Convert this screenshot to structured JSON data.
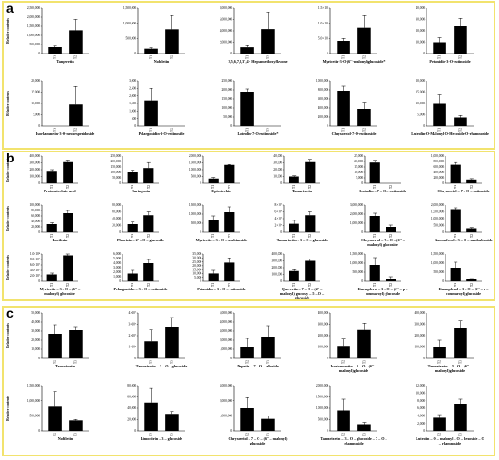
{
  "figure": {
    "panels": [
      {
        "id": "a",
        "letter": "a",
        "ylabel": "Relative contents"
      },
      {
        "id": "b",
        "letter": "b",
        "ylabel": "Relative contents"
      },
      {
        "id": "c",
        "letter": "c",
        "ylabel": "Relative contents"
      }
    ]
  },
  "chart_data": [
    {
      "type": "bar",
      "panel": "a",
      "title": "Tangeretin",
      "categories": [
        "T1",
        "T2"
      ],
      "values": [
        350000,
        1280000
      ],
      "errors": [
        60000,
        600000
      ],
      "yticks": [
        "0",
        "500,000",
        "1,000,000",
        "1,500,000",
        "2,000,000",
        "2,500,000"
      ],
      "ylim": [
        0,
        2500000
      ]
    },
    {
      "type": "bar",
      "panel": "a",
      "title": "Nobiletin",
      "categories": [
        "T1",
        "T2"
      ],
      "values": [
        160000,
        800000
      ],
      "errors": [
        30000,
        450000
      ],
      "yticks": [
        "0",
        "500,000",
        "1,000,000",
        "1,500,000"
      ],
      "ylim": [
        0,
        1500000
      ]
    },
    {
      "type": "bar",
      "panel": "a",
      "title": "3,5,6,7,8,3′,4′- Heptamethoxyflavone",
      "categories": [
        "T1",
        "T2"
      ],
      "values": [
        1100000,
        4300000
      ],
      "errors": [
        300000,
        3000000
      ],
      "yticks": [
        "0",
        "2,000,000",
        "4,000,000",
        "6,000,000",
        "8,000,000"
      ],
      "ylim": [
        0,
        8000000
      ]
    },
    {
      "type": "bar",
      "panel": "a",
      "title": "Myricetin-3-O-(6''-malonyl)glucoside*",
      "categories": [
        "T1",
        "T2"
      ],
      "values": [
        42000000,
        85000000
      ],
      "errors": [
        8000000,
        40000000
      ],
      "yticks": [
        "0",
        "5.0×10⁷",
        "1.0×10⁸",
        "1.5×10⁸"
      ],
      "ylim": [
        0,
        150000000
      ]
    },
    {
      "type": "bar",
      "panel": "a",
      "title": "Petunidin-3-O-rutinoside",
      "categories": [
        "T1",
        "T2"
      ],
      "values": [
        10000,
        24000
      ],
      "errors": [
        4000,
        7000
      ],
      "yticks": [
        "0",
        "10,000",
        "20,000",
        "30,000",
        "40,000"
      ],
      "ylim": [
        0,
        40000
      ]
    },
    {
      "type": "bar",
      "panel": "a",
      "title": "Isorhamnetin-3-O-neohesperidoside",
      "categories": [
        "T1",
        "T2"
      ],
      "values": [
        0,
        9500
      ],
      "errors": [
        0,
        8000
      ],
      "yticks": [
        "0",
        "5,000",
        "10,000",
        "15,000",
        "20,000"
      ],
      "ylim": [
        0,
        20000
      ]
    },
    {
      "type": "bar",
      "panel": "a",
      "title": "Pelargonidin-3-O-rutinoside",
      "categories": [
        "T1",
        "T2"
      ],
      "values": [
        1700,
        0
      ],
      "errors": [
        800,
        0
      ],
      "yticks": [
        "0",
        "500",
        "1,000",
        "1,500",
        "2,000",
        "2,500",
        "3,000"
      ],
      "ylim": [
        0,
        3000
      ]
    },
    {
      "type": "bar",
      "panel": "a",
      "title": "Luteolin-7-O-rutinoside*",
      "categories": [
        "T1",
        "T2"
      ],
      "values": [
        190000,
        0
      ],
      "errors": [
        15000,
        0
      ],
      "yticks": [
        "0",
        "50,000",
        "100,000",
        "150,000",
        "200,000",
        "250,000"
      ],
      "ylim": [
        0,
        250000
      ]
    },
    {
      "type": "bar",
      "panel": "a",
      "title": "Chrysoeriol-7-O-rutinoside",
      "categories": [
        "T1",
        "T2"
      ],
      "values": [
        780000,
        380000
      ],
      "errors": [
        100000,
        150000
      ],
      "yticks": [
        "0",
        "200,000",
        "400,000",
        "600,000",
        "800,000",
        "1,000,000"
      ],
      "ylim": [
        0,
        1000000
      ]
    },
    {
      "type": "bar",
      "panel": "a",
      "title": "Luteolin-O-Malonyl-O-Hexoside-O-rhamnoside",
      "categories": [
        "T1",
        "T2"
      ],
      "values": [
        9800,
        3800
      ],
      "errors": [
        4000,
        900
      ],
      "yticks": [
        "0",
        "5,000",
        "10,000",
        "15,000",
        "20,000"
      ],
      "ylim": [
        0,
        20000
      ]
    },
    {
      "type": "bar",
      "panel": "b",
      "title": "Protocatechuic acid",
      "categories": [
        "T1",
        "T2"
      ],
      "values": [
        170000,
        310000
      ],
      "errors": [
        30000,
        30000
      ],
      "yticks": [
        "0",
        "100,000",
        "200,000",
        "300,000",
        "400,000"
      ],
      "ylim": [
        0,
        400000
      ]
    },
    {
      "type": "bar",
      "panel": "b",
      "title": "Naringenin",
      "categories": [
        "T1",
        "T2"
      ],
      "values": [
        100000,
        140000
      ],
      "errors": [
        20000,
        50000
      ],
      "yticks": [
        "0",
        "50,000",
        "100,000",
        "150,000",
        "200,000",
        "250,000"
      ],
      "ylim": [
        0,
        250000
      ]
    },
    {
      "type": "bar",
      "panel": "b",
      "title": "Epicatechin",
      "categories": [
        "T1",
        "T2"
      ],
      "values": [
        350000,
        1350000
      ],
      "errors": [
        80000,
        30000
      ],
      "yticks": [
        "0",
        "500,000",
        "1,000,000",
        "1,500,000",
        "2,000,000"
      ],
      "ylim": [
        0,
        2000000
      ]
    },
    {
      "type": "bar",
      "panel": "b",
      "title": "Tamarixetin",
      "categories": [
        "T1",
        "T2"
      ],
      "values": [
        10000,
        31000
      ],
      "errors": [
        1000,
        4000
      ],
      "yticks": [
        "0",
        "10,000",
        "20,000",
        "30,000",
        "40,000"
      ],
      "ylim": [
        0,
        40000
      ]
    },
    {
      "type": "bar",
      "panel": "b",
      "title": "Luteolin – 7 – O – rutinoside",
      "categories": [
        "T1",
        "T2"
      ],
      "values": [
        19000,
        0
      ],
      "errors": [
        2000,
        0
      ],
      "yticks": [
        "0",
        "5,000",
        "10,000",
        "15,000",
        "20,000",
        "25,000"
      ],
      "ylim": [
        0,
        25000
      ]
    },
    {
      "type": "bar",
      "panel": "b",
      "title": "Chrysoeriol – 7 – O – rutinoside",
      "categories": [
        "T1",
        "T2"
      ],
      "values": [
        680000,
        140000
      ],
      "errors": [
        80000,
        30000
      ],
      "yticks": [
        "0",
        "200,000",
        "400,000",
        "600,000",
        "800,000",
        "1,000,000"
      ],
      "ylim": [
        0,
        1000000
      ]
    },
    {
      "type": "bar",
      "panel": "b",
      "title": "Luciferin",
      "categories": [
        "T1",
        "T2"
      ],
      "values": [
        30000,
        70000
      ],
      "errors": [
        5000,
        10000
      ],
      "yticks": [
        "0",
        "20,000",
        "40,000",
        "60,000",
        "80,000",
        "100,000"
      ],
      "ylim": [
        0,
        100000
      ]
    },
    {
      "type": "bar",
      "panel": "b",
      "title": "Phlorizin – 2' – O – glucoside",
      "categories": [
        "T1",
        "T2"
      ],
      "values": [
        24000,
        50000
      ],
      "errors": [
        6000,
        10000
      ],
      "yticks": [
        "0",
        "20,000",
        "40,000",
        "60,000",
        "80,000"
      ],
      "ylim": [
        0,
        80000
      ]
    },
    {
      "type": "bar",
      "panel": "b",
      "title": "Myricetin – 3 – O – arabinoside",
      "categories": [
        "T1",
        "T2"
      ],
      "values": [
        700000,
        1100000
      ],
      "errors": [
        200000,
        300000
      ],
      "yticks": [
        "0",
        "500,000",
        "1,000,000",
        "1,500,000"
      ],
      "ylim": [
        0,
        1500000
      ]
    },
    {
      "type": "bar",
      "panel": "b",
      "title": "Tamarixetin – 3 – O – glucoside",
      "categories": [
        "T1",
        "T2"
      ],
      "values": [
        25000000,
        50000000
      ],
      "errors": [
        10000000,
        10000000
      ],
      "yticks": [
        "0",
        "2×10⁷",
        "4×10⁷",
        "6×10⁷",
        "8×10⁷"
      ],
      "ylim": [
        0,
        80000000
      ]
    },
    {
      "type": "bar",
      "panel": "b",
      "title": "Chrysoeriol – 7 – O – (6'' – malonyl) glucoside",
      "categories": [
        "T1",
        "T2"
      ],
      "values": [
        1800000,
        600000
      ],
      "errors": [
        300000,
        200000
      ],
      "yticks": [
        "0",
        "1,000,000",
        "2,000,000",
        "3,000,000"
      ],
      "ylim": [
        0,
        3000000
      ]
    },
    {
      "type": "bar",
      "panel": "b",
      "title": "Kaempferol – 3 – O – sambubioside",
      "categories": [
        "T1",
        "T2"
      ],
      "values": [
        1700000,
        300000
      ],
      "errors": [
        100000,
        50000
      ],
      "yticks": [
        "0",
        "500,000",
        "1,000,000",
        "1,500,000",
        "2,000,000"
      ],
      "ylim": [
        0,
        2000000
      ]
    },
    {
      "type": "bar",
      "panel": "b",
      "title": "Myricetin – 3 – O – (6'' – malonyl) glucoside",
      "categories": [
        "T1",
        "T2"
      ],
      "values": [
        25000000,
        95000000
      ],
      "errors": [
        5000000,
        15000000
      ],
      "yticks": [
        "0",
        "2.0×10⁷",
        "4.0×10⁷",
        "6.0×10⁷",
        "8.0×10⁷",
        "1.0×10⁸"
      ],
      "ylim": [
        0,
        100000000
      ]
    },
    {
      "type": "bar",
      "panel": "b",
      "title": "Pelargonidin – 3 – O – rutinoside",
      "categories": [
        "T1",
        "T2"
      ],
      "values": [
        1700,
        4000
      ],
      "errors": [
        700,
        800
      ],
      "yticks": [
        "0",
        "1,000",
        "2,000",
        "3,000",
        "4,000",
        "5,000",
        "6,000"
      ],
      "ylim": [
        0,
        6000
      ]
    },
    {
      "type": "bar",
      "panel": "b",
      "title": "Petunidin – 3 – O – rutinoside",
      "categories": [
        "T1",
        "T2"
      ],
      "values": [
        10000,
        24000
      ],
      "errors": [
        4000,
        6000
      ],
      "yticks": [
        "0",
        "5,000",
        "10,000",
        "15,000",
        "20,000",
        "25,000",
        "30,000",
        "35,000"
      ],
      "ylim": [
        0,
        35000
      ]
    },
    {
      "type": "bar",
      "panel": "b",
      "title": "Quercetin – 7 – O – (2'' – malonyl) glucosyl – 5 – O – glucoside",
      "categories": [
        "T1",
        "T2"
      ],
      "values": [
        150000,
        300000
      ],
      "errors": [
        20000,
        30000
      ],
      "yticks": [
        "0",
        "100,000",
        "200,000",
        "300,000",
        "400,000"
      ],
      "ylim": [
        0,
        400000
      ]
    },
    {
      "type": "bar",
      "panel": "b",
      "title": "Kaempferol – 3 – O – (2'' – p – coumaroyl) glucoside",
      "categories": [
        "T1",
        "T2"
      ],
      "values": [
        900000,
        150000
      ],
      "errors": [
        400000,
        100000
      ],
      "yticks": [
        "0",
        "500,000",
        "1,000,000",
        "1,500,000"
      ],
      "ylim": [
        0,
        1500000
      ]
    },
    {
      "type": "bar",
      "panel": "b",
      "title": "Kaempferol – 3 – O – (6'' – p – coumaroyl) glucoside",
      "categories": [
        "T1",
        "T2"
      ],
      "values": [
        750000,
        100000
      ],
      "errors": [
        300000,
        50000
      ],
      "yticks": [
        "0",
        "500,000",
        "1,000,000",
        "1,500,000"
      ],
      "ylim": [
        0,
        1500000
      ]
    },
    {
      "type": "bar",
      "panel": "c",
      "title": "Tamarixetin",
      "categories": [
        "T2",
        "T3"
      ],
      "values": [
        27000,
        31000
      ],
      "errors": [
        10000,
        4000
      ],
      "yticks": [
        "0",
        "10,000",
        "20,000",
        "30,000",
        "40,000",
        "50,000"
      ],
      "ylim": [
        0,
        50000
      ]
    },
    {
      "type": "bar",
      "panel": "c",
      "title": "Tamarixetin – 3 – O – glucoside",
      "categories": [
        "T2",
        "T3"
      ],
      "values": [
        15000000,
        28000000
      ],
      "errors": [
        10000000,
        8000000
      ],
      "yticks": [
        "0",
        "1×10⁷",
        "2×10⁷",
        "3×10⁷",
        "4×10⁷"
      ],
      "ylim": [
        0,
        40000000
      ]
    },
    {
      "type": "bar",
      "panel": "c",
      "title": "Nepetin – 7 – O – alloside",
      "categories": [
        "T2",
        "T3"
      ],
      "values": [
        1200000,
        2400000
      ],
      "errors": [
        1000000,
        1200000
      ],
      "yticks": [
        "0",
        "1,000,000",
        "2,000,000",
        "3,000,000",
        "4,000,000",
        "5,000,000"
      ],
      "ylim": [
        0,
        5000000
      ]
    },
    {
      "type": "bar",
      "panel": "c",
      "title": "Isorhamnetin – 3 – O – (6'' – malonyl)glucoside",
      "categories": [
        "T2",
        "T3"
      ],
      "values": [
        110000,
        250000
      ],
      "errors": [
        60000,
        60000
      ],
      "yticks": [
        "0",
        "100,000",
        "200,000",
        "300,000",
        "400,000"
      ],
      "ylim": [
        0,
        400000
      ]
    },
    {
      "type": "bar",
      "panel": "c",
      "title": "Tamarixetin – 3 – O – (6'' – malonyl)glucoside",
      "categories": [
        "T2",
        "T3"
      ],
      "values": [
        100000,
        270000
      ],
      "errors": [
        60000,
        60000
      ],
      "yticks": [
        "0",
        "100,000",
        "200,000",
        "300,000",
        "400,000"
      ],
      "ylim": [
        0,
        400000
      ]
    },
    {
      "type": "bar",
      "panel": "c",
      "title": "Nobiletin",
      "categories": [
        "T2",
        "T3"
      ],
      "values": [
        800000,
        350000
      ],
      "errors": [
        500000,
        30000
      ],
      "yticks": [
        "0",
        "500,000",
        "1,000,000",
        "1,500,000"
      ],
      "ylim": [
        0,
        1500000
      ]
    },
    {
      "type": "bar",
      "panel": "c",
      "title": "Limocitrin – 3 – glucoside",
      "categories": [
        "T2",
        "T3"
      ],
      "values": [
        50000,
        30000
      ],
      "errors": [
        25000,
        4000
      ],
      "yticks": [
        "0",
        "20,000",
        "40,000",
        "60,000",
        "80,000"
      ],
      "ylim": [
        0,
        80000
      ]
    },
    {
      "type": "bar",
      "panel": "c",
      "title": "Chrysoeriol – 7 – O – (6'' – malonyl) glucoside",
      "categories": [
        "T2",
        "T3"
      ],
      "values": [
        1500000,
        800000
      ],
      "errors": [
        700000,
        200000
      ],
      "yticks": [
        "0",
        "1,000,000",
        "2,000,000",
        "3,000,000"
      ],
      "ylim": [
        0,
        3000000
      ]
    },
    {
      "type": "bar",
      "panel": "c",
      "title": "Tamarixetin – 3 – O – glucoside – 7 – O – rhamnoside",
      "categories": [
        "T2",
        "T3"
      ],
      "values": [
        900000,
        300000
      ],
      "errors": [
        500000,
        80000
      ],
      "yticks": [
        "0",
        "500,000",
        "1,000,000",
        "1,500,000",
        "2,000,000"
      ],
      "ylim": [
        0,
        2000000
      ]
    },
    {
      "type": "bar",
      "panel": "c",
      "title": "Luteolin – O – malonyl – O – hexoside – O – rhamnoside",
      "categories": [
        "T2",
        "T3"
      ],
      "values": [
        3500,
        7200
      ],
      "errors": [
        800,
        1200
      ],
      "yticks": [
        "0",
        "2,000",
        "4,000",
        "6,000",
        "8,000",
        "10,000",
        "12,000"
      ],
      "ylim": [
        0,
        12000
      ]
    }
  ]
}
